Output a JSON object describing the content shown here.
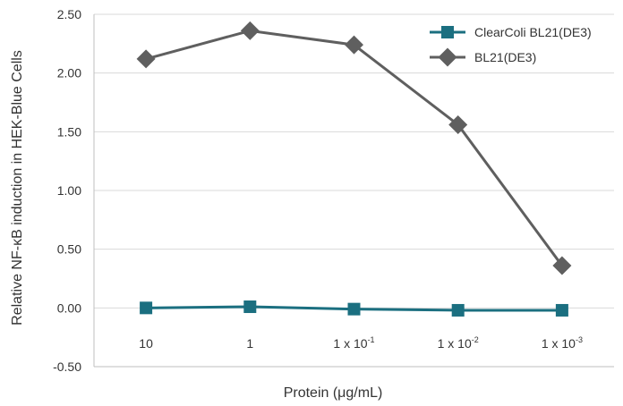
{
  "chart_data": {
    "type": "line",
    "categories": [
      "10",
      "1",
      "1 x 10-1",
      "1 x 10-2",
      "1 x 10-3"
    ],
    "category_ticks": [
      {
        "base": "10",
        "exp": ""
      },
      {
        "base": "1",
        "exp": ""
      },
      {
        "base": "1 x 10",
        "exp": "-1"
      },
      {
        "base": "1 x 10",
        "exp": "-2"
      },
      {
        "base": "1 x 10",
        "exp": "-3"
      }
    ],
    "series": [
      {
        "name": "ClearColi BL21(DE3)",
        "color": "#1b6f80",
        "marker": "square",
        "values": [
          0.0,
          0.01,
          -0.01,
          -0.02,
          -0.02
        ]
      },
      {
        "name": "BL21(DE3)",
        "color": "#5f5f5f",
        "marker": "diamond",
        "values": [
          2.12,
          2.36,
          2.24,
          1.56,
          0.36
        ]
      }
    ],
    "title": "",
    "xlabel": "Protein (μg/mL)",
    "ylabel": "Relative NF-κB induction in HEK-Blue Cells",
    "ylim": [
      -0.5,
      2.5
    ],
    "yticks": [
      "-0.50",
      "0.00",
      "0.50",
      "1.00",
      "1.50",
      "2.00",
      "2.50"
    ],
    "ytick_values": [
      -0.5,
      0.0,
      0.5,
      1.0,
      1.5,
      2.0,
      2.5
    ],
    "grid": "horizontal",
    "legend_position": "top-right"
  }
}
